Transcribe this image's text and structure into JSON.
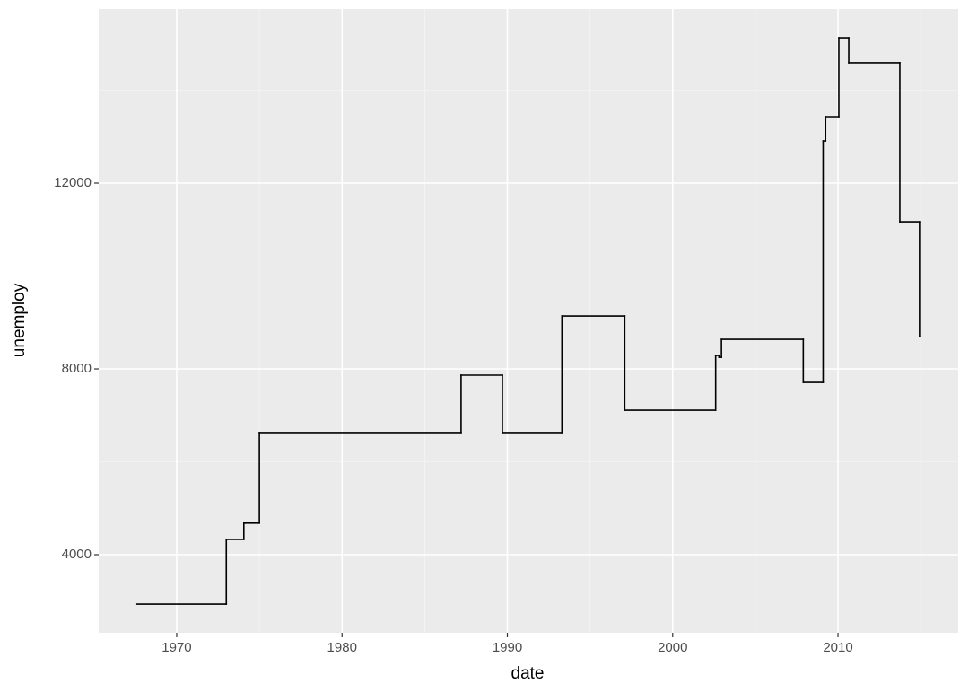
{
  "chart_data": {
    "type": "step",
    "x_label": "date",
    "y_label": "unemploy",
    "x": [
      1967.6,
      1973.0,
      1974.06,
      1975.0,
      1987.2,
      1989.7,
      1993.3,
      1997.1,
      2002.6,
      2002.8,
      2002.95,
      2007.9,
      2009.1,
      2009.25,
      2010.05,
      2010.65,
      2013.74,
      2014.93
    ],
    "values": [
      2937,
      4330,
      4680,
      6630,
      7865,
      6630,
      9140,
      7111,
      8290,
      8250,
      8637,
      7710,
      12908,
      13430,
      15130,
      14590,
      11168,
      8695
    ],
    "color": "#000000",
    "xlim": [
      1965.28,
      2017.27
    ],
    "xticks": [
      1970,
      1980,
      1990,
      2000,
      2010
    ],
    "ylim": [
      2319,
      15749
    ],
    "yticks": [
      4000,
      8000,
      12000
    ],
    "grid": true
  }
}
